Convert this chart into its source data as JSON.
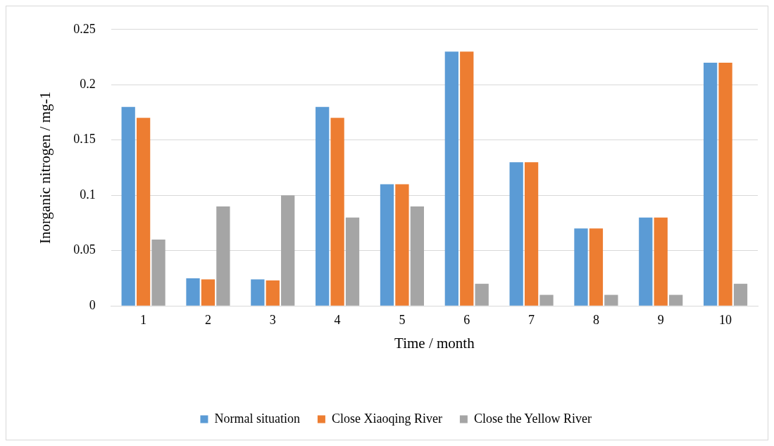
{
  "chart_data": {
    "type": "bar",
    "xlabel": "Time / month",
    "ylabel": "Inorganic nitrogen / mg-1",
    "categories": [
      "1",
      "2",
      "3",
      "4",
      "5",
      "6",
      "7",
      "8",
      "9",
      "10"
    ],
    "series": [
      {
        "name": "Normal situation",
        "color": "#5b9bd5",
        "values": [
          0.18,
          0.025,
          0.024,
          0.18,
          0.11,
          0.23,
          0.13,
          0.07,
          0.08,
          0.22
        ]
      },
      {
        "name": "Close Xiaoqing River",
        "color": "#ed7d31",
        "values": [
          0.17,
          0.024,
          0.023,
          0.17,
          0.11,
          0.23,
          0.13,
          0.07,
          0.08,
          0.22
        ]
      },
      {
        "name": "Close the Yellow River",
        "color": "#a5a5a5",
        "values": [
          0.06,
          0.09,
          0.1,
          0.08,
          0.09,
          0.02,
          0.01,
          0.01,
          0.01,
          0.02
        ]
      }
    ],
    "ylim": [
      0,
      0.25
    ],
    "yticks": [
      0,
      0.05,
      0.1,
      0.15,
      0.2,
      0.25
    ],
    "grid": "y",
    "legend": "bottom"
  }
}
